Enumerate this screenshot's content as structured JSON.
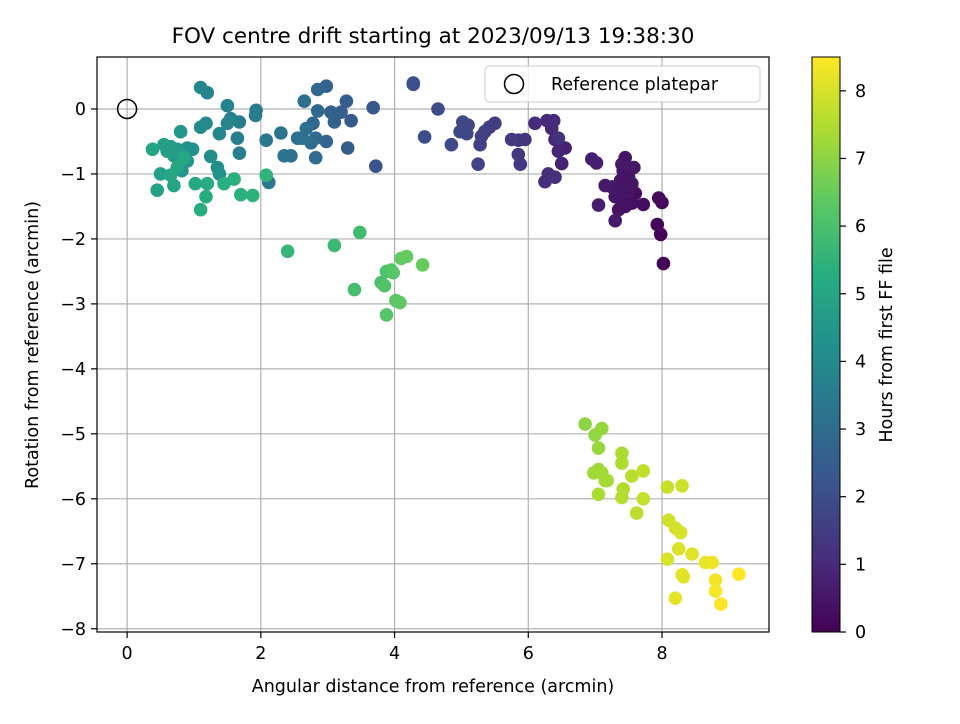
{
  "chart_data": {
    "type": "scatter",
    "title": "FOV centre drift starting at 2023/09/13 19:38:30",
    "xlabel": "Angular distance from reference (arcmin)",
    "ylabel": "Rotation from reference (arcmin)",
    "xlim": [
      -0.45,
      9.6
    ],
    "ylim": [
      -8.05,
      0.8
    ],
    "x_ticks": [
      0,
      2,
      4,
      6,
      8
    ],
    "x_tick_labels": [
      "0",
      "2",
      "4",
      "6",
      "8"
    ],
    "y_ticks": [
      0,
      -1,
      -2,
      -3,
      -4,
      -5,
      -6,
      -7,
      -8
    ],
    "y_tick_labels": [
      "0",
      "−1",
      "−2",
      "−3",
      "−4",
      "−5",
      "−6",
      "−7",
      "−8"
    ],
    "grid": true,
    "legend": {
      "placement": "top-right",
      "entries": [
        "Reference platepar"
      ]
    },
    "reference_point": {
      "x": 0,
      "y": 0
    },
    "colorbar": {
      "label": "Hours from first FF file",
      "colormap": "viridis",
      "range": [
        0,
        8.5
      ],
      "ticks": [
        0,
        1,
        2,
        3,
        4,
        5,
        6,
        7,
        8
      ],
      "tick_labels": [
        "0",
        "1",
        "2",
        "3",
        "4",
        "5",
        "6",
        "7",
        "8"
      ]
    },
    "points": [
      {
        "x": 8.02,
        "y": -2.38,
        "h": 0.05
      },
      {
        "x": 7.98,
        "y": -1.93,
        "h": 0.1
      },
      {
        "x": 7.93,
        "y": -1.78,
        "h": 0.15
      },
      {
        "x": 8.0,
        "y": -1.44,
        "h": 0.2
      },
      {
        "x": 7.95,
        "y": -1.37,
        "h": 0.25
      },
      {
        "x": 7.72,
        "y": -1.47,
        "h": 0.3
      },
      {
        "x": 7.6,
        "y": -1.3,
        "h": 0.3
      },
      {
        "x": 7.55,
        "y": -1.45,
        "h": 0.35
      },
      {
        "x": 7.5,
        "y": -1.35,
        "h": 0.35
      },
      {
        "x": 7.45,
        "y": -1.5,
        "h": 0.4
      },
      {
        "x": 7.4,
        "y": -1.4,
        "h": 0.4
      },
      {
        "x": 7.35,
        "y": -1.55,
        "h": 0.4
      },
      {
        "x": 7.3,
        "y": -1.35,
        "h": 0.45
      },
      {
        "x": 7.45,
        "y": -1.2,
        "h": 0.45
      },
      {
        "x": 7.38,
        "y": -1.1,
        "h": 0.45
      },
      {
        "x": 7.55,
        "y": -1.15,
        "h": 0.5
      },
      {
        "x": 7.42,
        "y": -0.95,
        "h": 0.5
      },
      {
        "x": 7.45,
        "y": -0.75,
        "h": 0.5
      },
      {
        "x": 7.58,
        "y": -0.9,
        "h": 0.55
      },
      {
        "x": 7.4,
        "y": -0.85,
        "h": 0.55
      },
      {
        "x": 7.25,
        "y": -1.2,
        "h": 0.6
      },
      {
        "x": 7.15,
        "y": -1.18,
        "h": 0.6
      },
      {
        "x": 7.3,
        "y": -1.72,
        "h": 0.6
      },
      {
        "x": 7.05,
        "y": -1.48,
        "h": 0.65
      },
      {
        "x": 7.02,
        "y": -0.83,
        "h": 0.7
      },
      {
        "x": 6.95,
        "y": -0.77,
        "h": 0.75
      },
      {
        "x": 7.48,
        "y": -1.28,
        "h": 0.5
      },
      {
        "x": 7.35,
        "y": -1.28,
        "h": 0.5
      },
      {
        "x": 7.5,
        "y": -1.05,
        "h": 0.45
      },
      {
        "x": 6.55,
        "y": -0.6,
        "h": 0.8
      },
      {
        "x": 6.5,
        "y": -0.84,
        "h": 0.85
      },
      {
        "x": 6.45,
        "y": -0.65,
        "h": 0.9
      },
      {
        "x": 6.4,
        "y": -0.47,
        "h": 0.9
      },
      {
        "x": 6.35,
        "y": -0.3,
        "h": 0.95
      },
      {
        "x": 6.38,
        "y": -0.18,
        "h": 1.0
      },
      {
        "x": 6.28,
        "y": -0.18,
        "h": 1.0
      },
      {
        "x": 6.1,
        "y": -0.22,
        "h": 1.05
      },
      {
        "x": 6.3,
        "y": -1.0,
        "h": 1.1
      },
      {
        "x": 6.25,
        "y": -1.12,
        "h": 1.1
      },
      {
        "x": 6.4,
        "y": -1.05,
        "h": 1.15
      },
      {
        "x": 6.45,
        "y": -0.45,
        "h": 1.2
      },
      {
        "x": 5.95,
        "y": -0.47,
        "h": 1.25
      },
      {
        "x": 5.85,
        "y": -0.48,
        "h": 1.3
      },
      {
        "x": 5.85,
        "y": -0.7,
        "h": 1.35
      },
      {
        "x": 5.88,
        "y": -0.85,
        "h": 1.4
      },
      {
        "x": 5.75,
        "y": -0.47,
        "h": 1.45
      },
      {
        "x": 5.5,
        "y": -0.22,
        "h": 1.5
      },
      {
        "x": 5.42,
        "y": -0.28,
        "h": 1.55
      },
      {
        "x": 5.35,
        "y": -0.35,
        "h": 1.6
      },
      {
        "x": 5.3,
        "y": -0.42,
        "h": 1.6
      },
      {
        "x": 5.28,
        "y": -0.55,
        "h": 1.65
      },
      {
        "x": 5.25,
        "y": -0.85,
        "h": 1.7
      },
      {
        "x": 5.1,
        "y": -0.25,
        "h": 1.75
      },
      {
        "x": 5.02,
        "y": -0.2,
        "h": 1.8
      },
      {
        "x": 5.08,
        "y": -0.38,
        "h": 1.8
      },
      {
        "x": 4.98,
        "y": -0.35,
        "h": 1.85
      },
      {
        "x": 4.85,
        "y": -0.55,
        "h": 1.9
      },
      {
        "x": 4.65,
        "y": 0.0,
        "h": 1.95
      },
      {
        "x": 4.45,
        "y": -0.43,
        "h": 2.0
      },
      {
        "x": 4.28,
        "y": 0.4,
        "h": 2.05
      },
      {
        "x": 4.28,
        "y": 0.38,
        "h": 2.1
      },
      {
        "x": 3.72,
        "y": -0.88,
        "h": 2.2
      },
      {
        "x": 3.68,
        "y": 0.02,
        "h": 2.3
      },
      {
        "x": 3.35,
        "y": -0.18,
        "h": 2.4
      },
      {
        "x": 3.3,
        "y": -0.6,
        "h": 2.45
      },
      {
        "x": 3.28,
        "y": 0.12,
        "h": 2.5
      },
      {
        "x": 3.2,
        "y": -0.05,
        "h": 2.55
      },
      {
        "x": 3.1,
        "y": -0.2,
        "h": 2.6
      },
      {
        "x": 3.05,
        "y": -0.05,
        "h": 2.65
      },
      {
        "x": 2.98,
        "y": 0.35,
        "h": 2.7
      },
      {
        "x": 2.98,
        "y": -0.5,
        "h": 2.75
      },
      {
        "x": 2.85,
        "y": 0.3,
        "h": 2.8
      },
      {
        "x": 2.85,
        "y": -0.03,
        "h": 2.85
      },
      {
        "x": 2.78,
        "y": -0.22,
        "h": 2.9
      },
      {
        "x": 2.82,
        "y": -0.45,
        "h": 2.95
      },
      {
        "x": 2.82,
        "y": -0.75,
        "h": 3.0
      },
      {
        "x": 2.75,
        "y": -0.52,
        "h": 3.0
      },
      {
        "x": 2.68,
        "y": -0.3,
        "h": 3.05
      },
      {
        "x": 2.65,
        "y": 0.12,
        "h": 3.1
      },
      {
        "x": 2.62,
        "y": -0.45,
        "h": 3.1
      },
      {
        "x": 2.55,
        "y": -0.45,
        "h": 3.15
      },
      {
        "x": 2.45,
        "y": -0.72,
        "h": 3.2
      },
      {
        "x": 2.35,
        "y": -0.72,
        "h": 3.25
      },
      {
        "x": 2.3,
        "y": -0.37,
        "h": 3.3
      },
      {
        "x": 2.12,
        "y": -1.13,
        "h": 3.35
      },
      {
        "x": 2.08,
        "y": -0.48,
        "h": 3.4
      },
      {
        "x": 1.93,
        "y": -0.02,
        "h": 3.45
      },
      {
        "x": 1.92,
        "y": -0.1,
        "h": 3.5
      },
      {
        "x": 1.68,
        "y": -0.2,
        "h": 3.55
      },
      {
        "x": 1.65,
        "y": -0.45,
        "h": 3.6
      },
      {
        "x": 1.68,
        "y": -0.68,
        "h": 3.65
      },
      {
        "x": 1.55,
        "y": -0.15,
        "h": 3.7
      },
      {
        "x": 1.5,
        "y": 0.05,
        "h": 3.75
      },
      {
        "x": 1.5,
        "y": -0.22,
        "h": 3.8
      },
      {
        "x": 1.38,
        "y": -0.38,
        "h": 3.85
      },
      {
        "x": 1.2,
        "y": 0.25,
        "h": 3.9
      },
      {
        "x": 1.1,
        "y": 0.33,
        "h": 3.95
      },
      {
        "x": 1.18,
        "y": -0.22,
        "h": 4.0
      },
      {
        "x": 1.1,
        "y": -0.28,
        "h": 4.05
      },
      {
        "x": 1.25,
        "y": -0.73,
        "h": 4.1
      },
      {
        "x": 1.35,
        "y": -0.9,
        "h": 4.15
      },
      {
        "x": 1.38,
        "y": -1.0,
        "h": 4.2
      },
      {
        "x": 0.98,
        "y": -0.62,
        "h": 4.25
      },
      {
        "x": 0.9,
        "y": -0.6,
        "h": 4.3
      },
      {
        "x": 0.9,
        "y": -0.8,
        "h": 4.35
      },
      {
        "x": 0.82,
        "y": -0.95,
        "h": 4.4
      },
      {
        "x": 0.78,
        "y": -0.75,
        "h": 4.45
      },
      {
        "x": 0.8,
        "y": -0.35,
        "h": 4.5
      },
      {
        "x": 0.75,
        "y": -0.62,
        "h": 4.55
      },
      {
        "x": 0.7,
        "y": -0.72,
        "h": 4.6
      },
      {
        "x": 0.65,
        "y": -0.58,
        "h": 4.65
      },
      {
        "x": 0.6,
        "y": -0.65,
        "h": 4.7
      },
      {
        "x": 0.55,
        "y": -0.55,
        "h": 4.75
      },
      {
        "x": 0.5,
        "y": -1.0,
        "h": 4.8
      },
      {
        "x": 0.45,
        "y": -1.25,
        "h": 4.85
      },
      {
        "x": 0.38,
        "y": -0.62,
        "h": 4.9
      },
      {
        "x": 0.65,
        "y": -1.02,
        "h": 4.95
      },
      {
        "x": 0.7,
        "y": -1.18,
        "h": 5.0
      },
      {
        "x": 0.75,
        "y": -0.9,
        "h": 5.0
      },
      {
        "x": 0.85,
        "y": -0.75,
        "h": 5.05
      },
      {
        "x": 1.02,
        "y": -1.15,
        "h": 5.1
      },
      {
        "x": 1.2,
        "y": -1.15,
        "h": 5.15
      },
      {
        "x": 1.18,
        "y": -1.35,
        "h": 5.2
      },
      {
        "x": 1.1,
        "y": -1.55,
        "h": 5.25
      },
      {
        "x": 1.45,
        "y": -1.15,
        "h": 5.3
      },
      {
        "x": 1.6,
        "y": -1.08,
        "h": 5.35
      },
      {
        "x": 1.7,
        "y": -1.32,
        "h": 5.4
      },
      {
        "x": 1.88,
        "y": -1.33,
        "h": 5.45
      },
      {
        "x": 2.08,
        "y": -1.02,
        "h": 5.5
      },
      {
        "x": 2.4,
        "y": -2.19,
        "h": 5.6
      },
      {
        "x": 3.1,
        "y": -2.1,
        "h": 5.7
      },
      {
        "x": 3.48,
        "y": -1.9,
        "h": 5.8
      },
      {
        "x": 3.4,
        "y": -2.78,
        "h": 5.9
      },
      {
        "x": 3.8,
        "y": -2.67,
        "h": 6.0
      },
      {
        "x": 3.88,
        "y": -2.5,
        "h": 6.05
      },
      {
        "x": 3.85,
        "y": -2.72,
        "h": 6.1
      },
      {
        "x": 3.95,
        "y": -2.48,
        "h": 6.15
      },
      {
        "x": 3.98,
        "y": -2.52,
        "h": 6.2
      },
      {
        "x": 3.88,
        "y": -3.17,
        "h": 6.25
      },
      {
        "x": 4.02,
        "y": -2.95,
        "h": 6.3
      },
      {
        "x": 4.08,
        "y": -2.98,
        "h": 6.35
      },
      {
        "x": 4.1,
        "y": -2.3,
        "h": 6.4
      },
      {
        "x": 4.18,
        "y": -2.27,
        "h": 6.45
      },
      {
        "x": 4.42,
        "y": -2.4,
        "h": 6.5
      },
      {
        "x": 6.85,
        "y": -4.85,
        "h": 7.0
      },
      {
        "x": 7.0,
        "y": -5.02,
        "h": 7.05
      },
      {
        "x": 7.1,
        "y": -4.92,
        "h": 7.1
      },
      {
        "x": 7.05,
        "y": -5.22,
        "h": 7.15
      },
      {
        "x": 7.05,
        "y": -5.55,
        "h": 7.2
      },
      {
        "x": 6.98,
        "y": -5.6,
        "h": 7.25
      },
      {
        "x": 7.1,
        "y": -5.6,
        "h": 7.3
      },
      {
        "x": 7.15,
        "y": -5.72,
        "h": 7.35
      },
      {
        "x": 7.18,
        "y": -5.72,
        "h": 7.35
      },
      {
        "x": 7.05,
        "y": -5.93,
        "h": 7.4
      },
      {
        "x": 7.4,
        "y": -5.3,
        "h": 7.4
      },
      {
        "x": 7.4,
        "y": -5.45,
        "h": 7.45
      },
      {
        "x": 7.42,
        "y": -5.85,
        "h": 7.5
      },
      {
        "x": 7.4,
        "y": -5.98,
        "h": 7.55
      },
      {
        "x": 7.55,
        "y": -5.65,
        "h": 7.6
      },
      {
        "x": 7.62,
        "y": -6.22,
        "h": 7.65
      },
      {
        "x": 7.72,
        "y": -5.57,
        "h": 7.7
      },
      {
        "x": 7.72,
        "y": -6.0,
        "h": 7.75
      },
      {
        "x": 8.08,
        "y": -5.82,
        "h": 7.8
      },
      {
        "x": 8.3,
        "y": -5.8,
        "h": 7.85
      },
      {
        "x": 8.1,
        "y": -6.33,
        "h": 7.9
      },
      {
        "x": 8.2,
        "y": -6.45,
        "h": 7.95
      },
      {
        "x": 8.28,
        "y": -6.52,
        "h": 8.0
      },
      {
        "x": 8.08,
        "y": -6.93,
        "h": 8.0
      },
      {
        "x": 8.25,
        "y": -6.77,
        "h": 8.05
      },
      {
        "x": 8.45,
        "y": -6.85,
        "h": 8.1
      },
      {
        "x": 8.3,
        "y": -7.17,
        "h": 8.15
      },
      {
        "x": 8.32,
        "y": -7.2,
        "h": 8.15
      },
      {
        "x": 8.2,
        "y": -7.53,
        "h": 8.2
      },
      {
        "x": 8.65,
        "y": -6.98,
        "h": 8.25
      },
      {
        "x": 8.75,
        "y": -6.98,
        "h": 8.3
      },
      {
        "x": 8.8,
        "y": -7.25,
        "h": 8.35
      },
      {
        "x": 8.8,
        "y": -7.42,
        "h": 8.4
      },
      {
        "x": 8.88,
        "y": -7.62,
        "h": 8.45
      },
      {
        "x": 9.15,
        "y": -7.16,
        "h": 8.5
      }
    ]
  }
}
